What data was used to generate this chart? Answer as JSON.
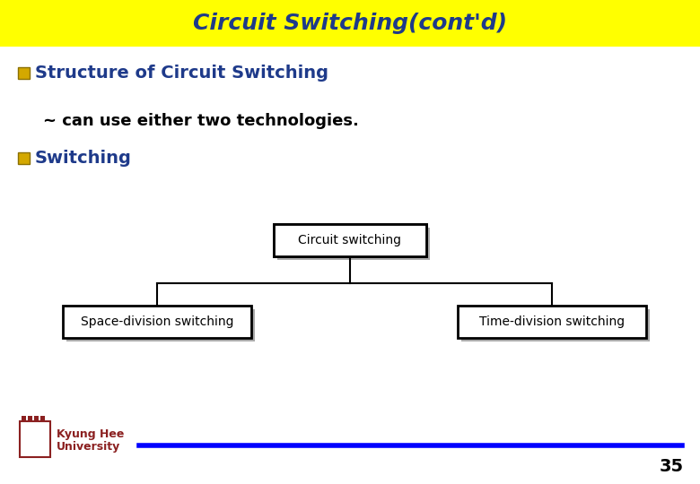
{
  "title": "Circuit Switching(cont'd)",
  "title_bg_color": "#FFFF00",
  "title_text_color": "#1E3A8A",
  "title_fontsize": 18,
  "bullet_color": "#D4A800",
  "bullet_fill": "#FFFFFF",
  "text_color": "#1E3A8A",
  "body_bg_color": "#FFFFFF",
  "line1": "Structure of Circuit Switching",
  "line2": "~ can use either two technologies.",
  "line3": "Switching",
  "box_top_label": "Circuit switching",
  "box_left_label": "Space-division switching",
  "box_right_label": "Time-division switching",
  "footer_text_line1": "Kyung Hee",
  "footer_text_line2": "University",
  "footer_number": "35",
  "footer_line_color": "#0000FF",
  "diagram_box_color": "#FFFFFF",
  "diagram_box_edge": "#000000",
  "line1_fontsize": 14,
  "line2_fontsize": 13,
  "line3_fontsize": 14,
  "diagram_fontsize": 10
}
